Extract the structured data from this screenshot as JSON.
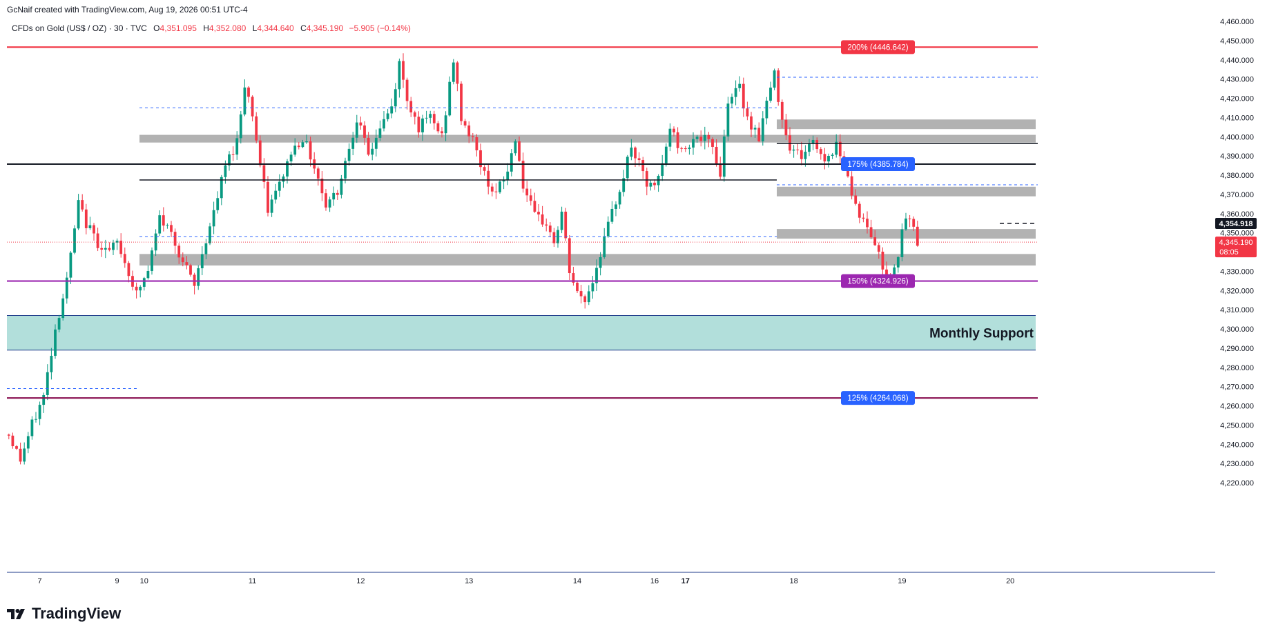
{
  "header": {
    "created_by": "GcNaif created with TradingView.com, Aug 19, 2026 00:51 UTC-4",
    "symbol": "CFDs on Gold (US$ / OZ) · 30 · TVC",
    "o_label": "O",
    "o_value": "4,351.095",
    "h_label": "H",
    "h_value": "4,352.080",
    "l_label": "L",
    "l_value": "4,344.640",
    "c_label": "C",
    "c_value": "4,345.190",
    "change": "−5.905 (−0.14%)"
  },
  "brand": {
    "name": "TradingView",
    "icon": "tradingview-logo-icon"
  },
  "colors": {
    "up": "#089981",
    "down": "#f23645",
    "fib200": "#f23645",
    "fib175": "#2962ff",
    "fib150": "#9c27b0",
    "fib125": "#880e4f",
    "zone_gray": "#b2b2b2",
    "support_fill": "#b2dfdb"
  },
  "chart_data": {
    "type": "candlestick",
    "title": "CFDs on Gold (US$ / OZ) · 30 · TVC",
    "ylim": [
      4215,
      4462
    ],
    "y_ticks": [
      "4,220.000",
      "4,230.000",
      "4,240.000",
      "4,250.000",
      "4,260.000",
      "4,270.000",
      "4,280.000",
      "4,290.000",
      "4,300.000",
      "4,310.000",
      "4,320.000",
      "4,330.000",
      "4,340.000",
      "4,350.000",
      "4,360.000",
      "4,370.000",
      "4,380.000",
      "4,390.000",
      "4,400.000",
      "4,410.000",
      "4,420.000",
      "4,430.000",
      "4,440.000",
      "4,450.000",
      "4,460.000"
    ],
    "x_ticks": [
      {
        "label": "7",
        "bar": 8
      },
      {
        "label": "9",
        "bar": 28
      },
      {
        "label": "10",
        "bar": 35
      },
      {
        "label": "11",
        "bar": 63
      },
      {
        "label": "12",
        "bar": 91
      },
      {
        "label": "13",
        "bar": 119
      },
      {
        "label": "14",
        "bar": 147
      },
      {
        "label": "16",
        "bar": 167
      },
      {
        "label": "17",
        "bar": 175
      },
      {
        "label": "18",
        "bar": 203
      },
      {
        "label": "19",
        "bar": 231
      },
      {
        "label": "20",
        "bar": 259
      }
    ],
    "bar_count": 265,
    "anchors": [
      [
        0,
        4245
      ],
      [
        3,
        4232
      ],
      [
        6,
        4250
      ],
      [
        9,
        4265
      ],
      [
        12,
        4300
      ],
      [
        15,
        4325
      ],
      [
        18,
        4365
      ],
      [
        20,
        4355
      ],
      [
        23,
        4345
      ],
      [
        26,
        4340
      ],
      [
        28,
        4345
      ],
      [
        30,
        4335
      ],
      [
        33,
        4318
      ],
      [
        36,
        4330
      ],
      [
        39,
        4358
      ],
      [
        42,
        4350
      ],
      [
        45,
        4335
      ],
      [
        48,
        4322
      ],
      [
        50,
        4340
      ],
      [
        53,
        4360
      ],
      [
        56,
        4385
      ],
      [
        59,
        4398
      ],
      [
        61,
        4428
      ],
      [
        63,
        4412
      ],
      [
        65,
        4385
      ],
      [
        67,
        4362
      ],
      [
        70,
        4375
      ],
      [
        73,
        4392
      ],
      [
        76,
        4400
      ],
      [
        79,
        4385
      ],
      [
        82,
        4365
      ],
      [
        85,
        4372
      ],
      [
        88,
        4395
      ],
      [
        90,
        4410
      ],
      [
        93,
        4390
      ],
      [
        96,
        4405
      ],
      [
        99,
        4415
      ],
      [
        101,
        4438
      ],
      [
        103,
        4420
      ],
      [
        106,
        4405
      ],
      [
        109,
        4410
      ],
      [
        112,
        4400
      ],
      [
        115,
        4440
      ],
      [
        117,
        4410
      ],
      [
        120,
        4398
      ],
      [
        123,
        4380
      ],
      [
        126,
        4370
      ],
      [
        129,
        4382
      ],
      [
        131,
        4400
      ],
      [
        133,
        4375
      ],
      [
        136,
        4358
      ],
      [
        139,
        4355
      ],
      [
        141,
        4345
      ],
      [
        143,
        4360
      ],
      [
        145,
        4330
      ],
      [
        147,
        4318
      ],
      [
        149,
        4315
      ],
      [
        151,
        4325
      ],
      [
        153,
        4340
      ],
      [
        156,
        4360
      ],
      [
        159,
        4380
      ],
      [
        161,
        4395
      ],
      [
        163,
        4385
      ],
      [
        165,
        4375
      ],
      [
        167,
        4373
      ],
      [
        169,
        4385
      ],
      [
        171,
        4405
      ],
      [
        174,
        4392
      ],
      [
        177,
        4400
      ],
      [
        180,
        4398
      ],
      [
        182,
        4395
      ],
      [
        184,
        4380
      ],
      [
        186,
        4420
      ],
      [
        189,
        4425
      ],
      [
        191,
        4410
      ],
      [
        194,
        4400
      ],
      [
        196,
        4418
      ],
      [
        198,
        4432
      ],
      [
        200,
        4410
      ],
      [
        202,
        4395
      ],
      [
        205,
        4390
      ],
      [
        208,
        4398
      ],
      [
        211,
        4388
      ],
      [
        214,
        4395
      ],
      [
        216,
        4390
      ],
      [
        218,
        4370
      ],
      [
        220,
        4360
      ],
      [
        222,
        4352
      ],
      [
        224,
        4345
      ],
      [
        226,
        4332
      ],
      [
        228,
        4327
      ],
      [
        230,
        4340
      ],
      [
        232,
        4358
      ],
      [
        234,
        4353
      ],
      [
        235,
        4346
      ]
    ],
    "last_price": "4,345.190",
    "countdown": "08:05",
    "marked_price": "4,354.918",
    "levels": [
      {
        "label": "200% (4446.642)",
        "value": 4446.642,
        "color": "#f23645"
      },
      {
        "label": "175% (4385.784)",
        "value": 4385.784,
        "color": "#2962ff"
      },
      {
        "label": "150% (4324.926)",
        "value": 4324.926,
        "color": "#9c27b0"
      },
      {
        "label": "125% (4264.068)",
        "value": 4264.068,
        "color": "#2962ff"
      }
    ],
    "support_zone": {
      "label": "Monthly Support",
      "low": 4289,
      "high": 4307
    }
  }
}
